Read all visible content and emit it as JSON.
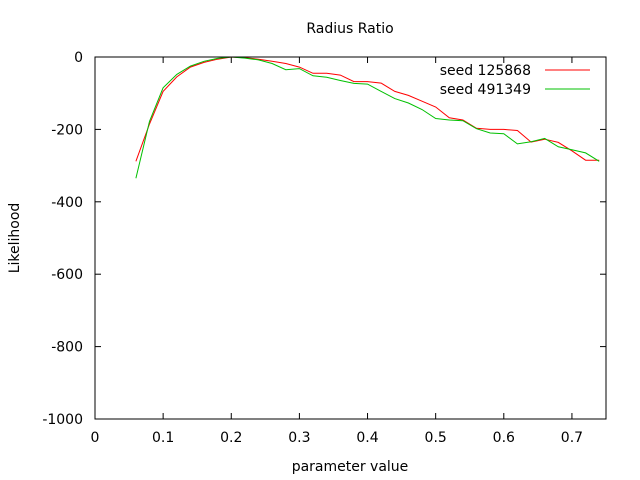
{
  "chart_data": {
    "type": "line",
    "title": "Radius Ratio",
    "xlabel": "parameter value",
    "ylabel": "Likelihood",
    "xlim": [
      0,
      0.75
    ],
    "ylim": [
      -1000,
      0
    ],
    "xticks": [
      0,
      0.1,
      0.2,
      0.3,
      0.4,
      0.5,
      0.6,
      0.7
    ],
    "xtick_labels": [
      "0",
      "0.1",
      "0.2",
      "0.3",
      "0.4",
      "0.5",
      "0.6",
      "0.7"
    ],
    "yticks": [
      0,
      -200,
      -400,
      -600,
      -800,
      -1000
    ],
    "ytick_labels": [
      "0",
      "-200",
      "-400",
      "-600",
      "-800",
      "-1000"
    ],
    "grid": false,
    "legend_position": "top-right",
    "series": [
      {
        "name": "seed 125868",
        "color": "#ff0000",
        "x": [
          0.06,
          0.08,
          0.1,
          0.12,
          0.14,
          0.16,
          0.18,
          0.2,
          0.22,
          0.24,
          0.26,
          0.28,
          0.3,
          0.32,
          0.34,
          0.36,
          0.38,
          0.4,
          0.42,
          0.44,
          0.46,
          0.48,
          0.5,
          0.52,
          0.54,
          0.56,
          0.58,
          0.6,
          0.62,
          0.64,
          0.66,
          0.68,
          0.7,
          0.72,
          0.74
        ],
        "y": [
          -288,
          -185,
          -95,
          -55,
          -28,
          -15,
          -6,
          0,
          -2,
          -6,
          -12,
          -18,
          -28,
          -45,
          -45,
          -50,
          -68,
          -68,
          -72,
          -95,
          -106,
          -122,
          -138,
          -168,
          -174,
          -197,
          -200,
          -200,
          -203,
          -235,
          -227,
          -236,
          -259,
          -285,
          -285
        ]
      },
      {
        "name": "seed 491349",
        "color": "#00c000",
        "x": [
          0.06,
          0.08,
          0.1,
          0.12,
          0.14,
          0.16,
          0.18,
          0.2,
          0.22,
          0.24,
          0.26,
          0.28,
          0.3,
          0.32,
          0.34,
          0.36,
          0.38,
          0.4,
          0.42,
          0.44,
          0.46,
          0.48,
          0.5,
          0.52,
          0.54,
          0.56,
          0.58,
          0.6,
          0.62,
          0.64,
          0.66,
          0.68,
          0.7,
          0.72,
          0.74
        ],
        "y": [
          -335,
          -178,
          -85,
          -48,
          -25,
          -12,
          -4,
          0,
          -3,
          -8,
          -18,
          -35,
          -32,
          -52,
          -56,
          -65,
          -73,
          -75,
          -95,
          -115,
          -127,
          -145,
          -170,
          -174,
          -176,
          -198,
          -210,
          -212,
          -240,
          -234,
          -225,
          -248,
          -256,
          -265,
          -288
        ]
      }
    ]
  }
}
